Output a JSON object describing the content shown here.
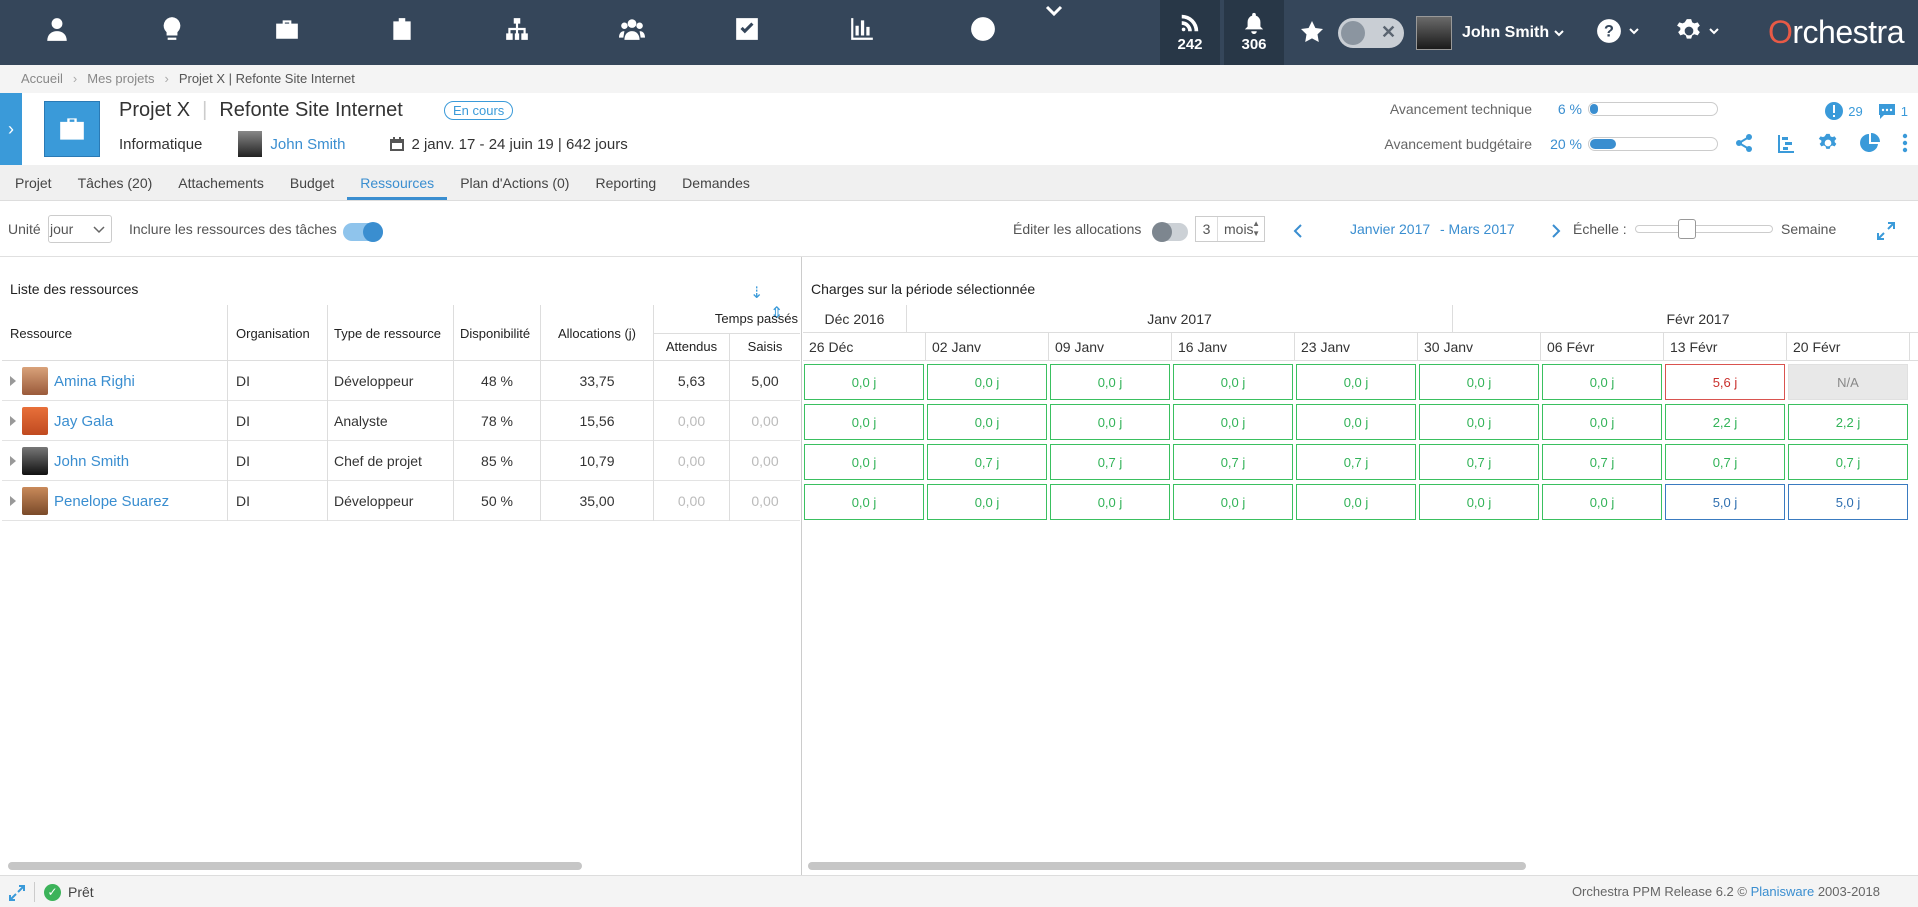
{
  "topnav": {
    "rss_count": "242",
    "notif_count": "306",
    "user_name": "John Smith",
    "brand_o": "O",
    "brand_rest": "rchestra"
  },
  "breadcrumb": [
    "Accueil",
    "Mes projets",
    "Projet X | Refonte Site Internet"
  ],
  "project": {
    "code": "Projet X",
    "name": "Refonte Site Internet",
    "status": "En cours",
    "category": "Informatique",
    "manager": "John Smith",
    "dates": "2 janv. 17 - 24 juin 19 | 642 jours",
    "progress_tech_label": "Avancement technique",
    "progress_tech_pct": "6 %",
    "progress_tech_value": 0.06,
    "progress_budget_label": "Avancement budgétaire",
    "progress_budget_pct": "20 %",
    "progress_budget_value": 0.2,
    "alerts_count": "29",
    "comments_count": "1"
  },
  "tabs": [
    "Projet",
    "Tâches (20)",
    "Attachements",
    "Budget",
    "Ressources",
    "Plan d'Actions (0)",
    "Reporting",
    "Demandes"
  ],
  "toolbar": {
    "unit_label": "Unité",
    "unit_value": "jour",
    "include_label": "Inclure les ressources des tâches",
    "edit_label": "Éditer les allocations",
    "months_value": "3",
    "months_unit": "mois",
    "period_start": "Janvier 2017",
    "period_end": "- Mars 2017",
    "scale_label": "Échelle :",
    "scale_value": "Semaine"
  },
  "resources": {
    "title": "Liste des ressources",
    "headers": {
      "resource": "Ressource",
      "org": "Organisation",
      "type": "Type de ressource",
      "dispo": "Disponibilité",
      "alloc": "Allocations (j)",
      "time_spent": "Temps passés",
      "expected": "Attendus",
      "entered": "Saisis"
    },
    "rows": [
      {
        "name": "Amina Righi",
        "org": "DI",
        "type": "Développeur",
        "dispo": "48 %",
        "alloc": "33,75",
        "expected": "5,63",
        "entered": "5,00"
      },
      {
        "name": "Jay Gala",
        "org": "DI",
        "type": "Analyste",
        "dispo": "78 %",
        "alloc": "15,56",
        "expected": "0,00",
        "entered": "0,00"
      },
      {
        "name": "John Smith",
        "org": "DI",
        "type": "Chef de projet",
        "dispo": "85 %",
        "alloc": "10,79",
        "expected": "0,00",
        "entered": "0,00"
      },
      {
        "name": "Penelope Suarez",
        "org": "DI",
        "type": "Développeur",
        "dispo": "50 %",
        "alloc": "35,00",
        "expected": "0,00",
        "entered": "0,00"
      }
    ]
  },
  "charges": {
    "title": "Charges sur la période sélectionnée",
    "months": [
      "Déc 2016",
      "Janv 2017",
      "Févr 2017"
    ],
    "weeks": [
      "26 Déc",
      "02 Janv",
      "09 Janv",
      "16 Janv",
      "23 Janv",
      "30 Janv",
      "06 Févr",
      "13 Févr",
      "20 Févr"
    ],
    "rows": [
      [
        "0,0 j",
        "0,0 j",
        "0,0 j",
        "0,0 j",
        "0,0 j",
        "0,0 j",
        "0,0 j",
        "5,6 j",
        "N/A"
      ],
      [
        "0,0 j",
        "0,0 j",
        "0,0 j",
        "0,0 j",
        "0,0 j",
        "0,0 j",
        "0,0 j",
        "2,2 j",
        "2,2 j"
      ],
      [
        "0,0 j",
        "0,7 j",
        "0,7 j",
        "0,7 j",
        "0,7 j",
        "0,7 j",
        "0,7 j",
        "0,7 j",
        "0,7 j"
      ],
      [
        "0,0 j",
        "0,0 j",
        "0,0 j",
        "0,0 j",
        "0,0 j",
        "0,0 j",
        "0,0 j",
        "5,0 j",
        "5,0 j"
      ]
    ]
  },
  "status": {
    "text": "Prêt",
    "release": "Orchestra PPM Release 6.2 ©",
    "vendor": "Planisware",
    "years": "2003-2018"
  }
}
